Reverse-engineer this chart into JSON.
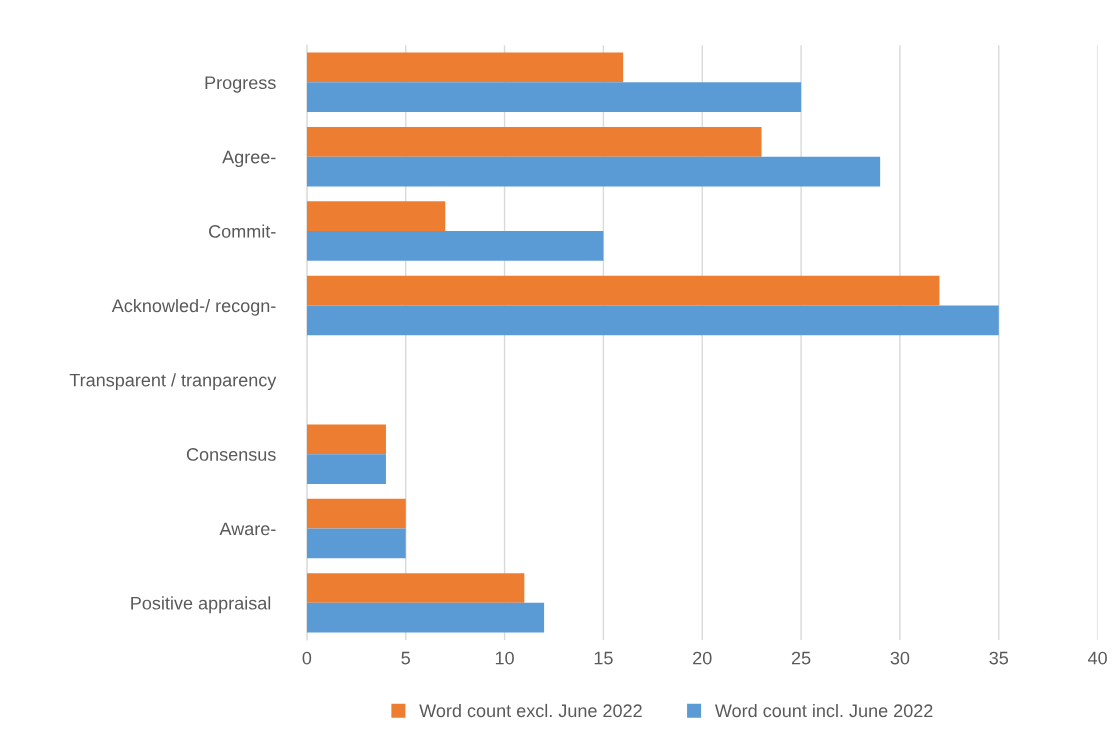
{
  "chart_data": {
    "type": "bar",
    "orientation": "horizontal",
    "categories": [
      "Progress",
      "Agree-",
      "Commit-",
      "Acknowled-/ recogn-",
      "Transparent / tranparency",
      "Consensus",
      "Aware-",
      "Positive appraisal "
    ],
    "series": [
      {
        "name": "Word count excl. June 2022",
        "color": "#ed7d31",
        "values": [
          16,
          23,
          7,
          32,
          0,
          4,
          5,
          11
        ]
      },
      {
        "name": "Word count incl. June 2022",
        "color": "#5b9bd5",
        "values": [
          25,
          29,
          15,
          35,
          0,
          4,
          5,
          12
        ]
      }
    ],
    "xlim": [
      0,
      40
    ],
    "xticks": [
      0,
      5,
      10,
      15,
      20,
      25,
      30,
      35,
      40
    ],
    "grid": "x",
    "legend": "bottom"
  }
}
